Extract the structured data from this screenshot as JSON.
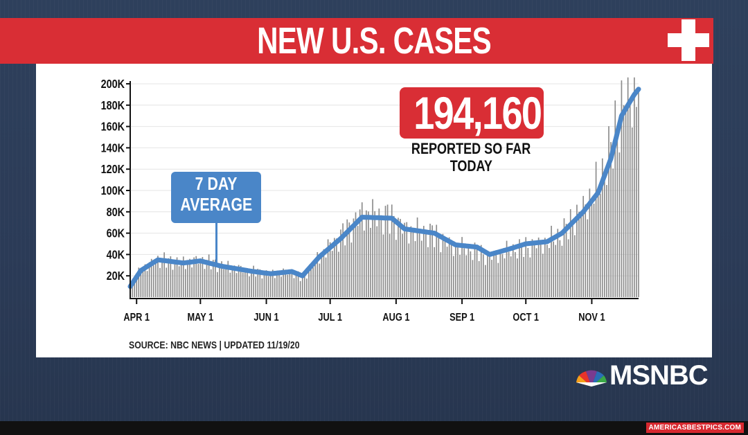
{
  "title": "NEW U.S. CASES",
  "callout": {
    "number": "194,160",
    "line1": "REPORTED SO FAR",
    "line2": "TODAY"
  },
  "legend_box": {
    "line1": "7 DAY",
    "line2": "AVERAGE"
  },
  "source": "SOURCE: NBC NEWS | UPDATED 11/19/20",
  "logo": "MSNBC",
  "credit": "AMERICASBESTPICS.COM",
  "colors": {
    "title_red": "#d92e35",
    "avg_blue": "#4a86c8",
    "bars": "#8c8c8c"
  },
  "chart_data": {
    "type": "bar",
    "ylim": [
      0,
      200000
    ],
    "y_ticks": [
      "200K",
      "180K",
      "160K",
      "140K",
      "120K",
      "100K",
      "80K",
      "60K",
      "40K",
      "20K"
    ],
    "y_tick_values": [
      200000,
      180000,
      160000,
      140000,
      120000,
      100000,
      80000,
      60000,
      40000,
      20000
    ],
    "x_ticks": [
      "APR 1",
      "MAY 1",
      "JUN 1",
      "JUL 1",
      "AUG 1",
      "SEP 1",
      "OCT 1",
      "NOV 1"
    ],
    "x_tick_day_index": [
      0,
      30,
      61,
      91,
      122,
      153,
      183,
      214
    ],
    "x_start": "2020-03-29",
    "daily_days": 236,
    "series": [
      {
        "type": "line",
        "points": [
          [
            -3,
            10000
          ],
          [
            2,
            25000
          ],
          [
            10,
            35000
          ],
          [
            22,
            32000
          ],
          [
            30,
            34000
          ],
          [
            40,
            29000
          ],
          [
            55,
            24000
          ],
          [
            63,
            22000
          ],
          [
            73,
            24000
          ],
          [
            78,
            20000
          ],
          [
            86,
            38000
          ],
          [
            96,
            55000
          ],
          [
            106,
            75000
          ],
          [
            120,
            74000
          ],
          [
            126,
            64000
          ],
          [
            140,
            60000
          ],
          [
            150,
            49000
          ],
          [
            160,
            47000
          ],
          [
            166,
            40000
          ],
          [
            175,
            45000
          ],
          [
            183,
            50000
          ],
          [
            193,
            52000
          ],
          [
            200,
            60000
          ],
          [
            210,
            80000
          ],
          [
            217,
            98000
          ],
          [
            223,
            130000
          ],
          [
            228,
            170000
          ],
          [
            234,
            190000
          ],
          [
            236,
            195000
          ]
        ]
      }
    ],
    "daily_anchors": [
      [
        -3,
        11000
      ],
      [
        2,
        26000
      ],
      [
        10,
        36000
      ],
      [
        22,
        32000
      ],
      [
        30,
        36000
      ],
      [
        40,
        30000
      ],
      [
        55,
        25000
      ],
      [
        63,
        22000
      ],
      [
        73,
        25000
      ],
      [
        78,
        18000
      ],
      [
        86,
        40000
      ],
      [
        96,
        58000
      ],
      [
        106,
        80000
      ],
      [
        120,
        76000
      ],
      [
        126,
        65000
      ],
      [
        140,
        60000
      ],
      [
        150,
        48000
      ],
      [
        160,
        44000
      ],
      [
        166,
        38000
      ],
      [
        175,
        44000
      ],
      [
        183,
        48000
      ],
      [
        193,
        52000
      ],
      [
        200,
        60000
      ],
      [
        210,
        85000
      ],
      [
        217,
        105000
      ],
      [
        223,
        140000
      ],
      [
        228,
        180000
      ],
      [
        234,
        198000
      ],
      [
        236,
        194160
      ]
    ]
  }
}
